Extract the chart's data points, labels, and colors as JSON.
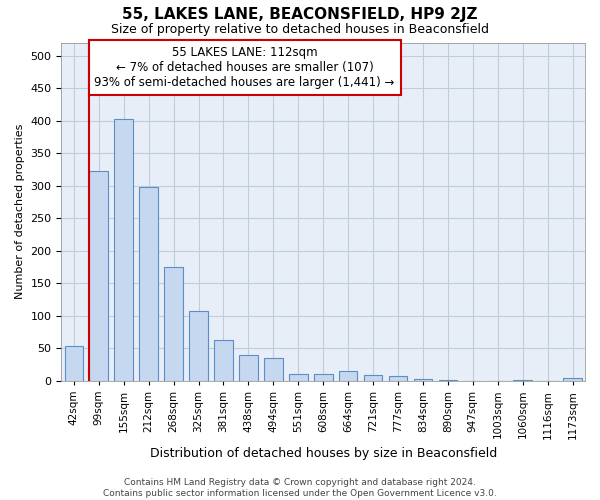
{
  "title": "55, LAKES LANE, BEACONSFIELD, HP9 2JZ",
  "subtitle": "Size of property relative to detached houses in Beaconsfield",
  "xlabel": "Distribution of detached houses by size in Beaconsfield",
  "ylabel": "Number of detached properties",
  "categories": [
    "42sqm",
    "99sqm",
    "155sqm",
    "212sqm",
    "268sqm",
    "325sqm",
    "381sqm",
    "438sqm",
    "494sqm",
    "551sqm",
    "608sqm",
    "664sqm",
    "721sqm",
    "777sqm",
    "834sqm",
    "890sqm",
    "947sqm",
    "1003sqm",
    "1060sqm",
    "1116sqm",
    "1173sqm"
  ],
  "values": [
    53,
    323,
    403,
    298,
    175,
    107,
    63,
    40,
    35,
    10,
    10,
    15,
    9,
    7,
    3,
    1,
    0,
    0,
    1,
    0,
    5
  ],
  "bar_color": "#c5d8f0",
  "bar_edge_color": "#5b8ec4",
  "marker_line_color": "#cc0000",
  "marker_bar_index": 1,
  "annotation_text": "55 LAKES LANE: 112sqm\n← 7% of detached houses are smaller (107)\n93% of semi-detached houses are larger (1,441) →",
  "annotation_box_color": "#ffffff",
  "annotation_box_edge": "#cc0000",
  "footer": "Contains HM Land Registry data © Crown copyright and database right 2024.\nContains public sector information licensed under the Open Government Licence v3.0.",
  "ylim": [
    0,
    520
  ],
  "yticks": [
    0,
    50,
    100,
    150,
    200,
    250,
    300,
    350,
    400,
    450,
    500
  ],
  "plot_bg_color": "#e8eef8",
  "background_color": "#ffffff",
  "grid_color": "#c0ccdc",
  "title_fontsize": 11,
  "subtitle_fontsize": 9,
  "ylabel_fontsize": 8,
  "xlabel_fontsize": 9,
  "tick_fontsize": 8,
  "xtick_fontsize": 7.5
}
